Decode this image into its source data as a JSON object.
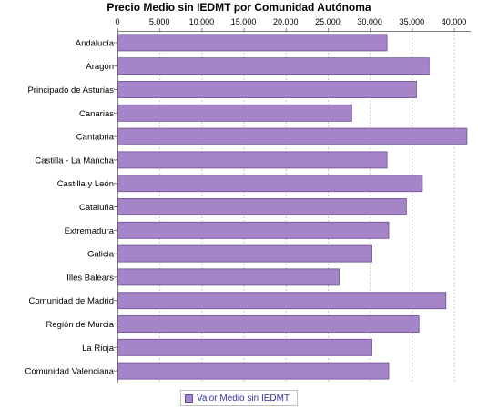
{
  "chart_data": {
    "type": "bar",
    "orientation": "horizontal",
    "title": "Precio Medio sin IEDMT por Comunidad Autónoma",
    "xlabel": "",
    "ylabel": "",
    "xlim": [
      0,
      42000
    ],
    "tick_values": [
      0,
      5000,
      10000,
      15000,
      20000,
      25000,
      30000,
      35000,
      40000
    ],
    "tick_labels": [
      "0",
      "5.000",
      "10.000",
      "15.000",
      "20.000",
      "25.000",
      "30.000",
      "35.000",
      "40.000"
    ],
    "grid": "vertical dashed",
    "legend_position": "bottom",
    "categories": [
      "Andalucía",
      "Aragón",
      "Principado de Asturias",
      "Canarias",
      "Cantabria",
      "Castilla - La Mancha",
      "Castilla y León",
      "Cataluña",
      "Extremadura",
      "Galicia",
      "Illes Balears",
      "Comunidad de Madrid",
      "Región de Murcia",
      "La Rioja",
      "Comunidad Valenciana"
    ],
    "series": [
      {
        "name": "Valor Medio sin IEDMT",
        "color": "#a584c8",
        "values": [
          32000,
          37000,
          35500,
          27800,
          41500,
          32000,
          36200,
          34300,
          32200,
          30200,
          26300,
          39000,
          35800,
          30200,
          32200
        ]
      }
    ]
  }
}
